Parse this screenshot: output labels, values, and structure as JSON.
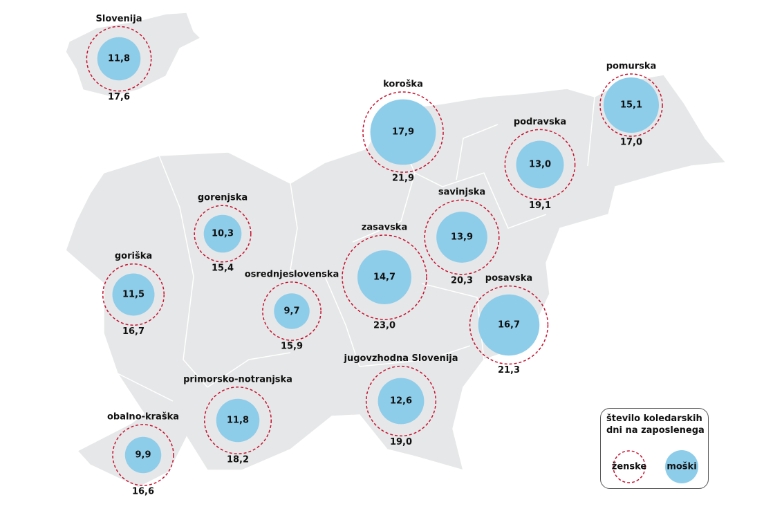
{
  "chart_data": {
    "type": "bubble_map",
    "categories": [
      "Slovenija",
      "koroška",
      "pomurska",
      "podravska",
      "gorenjska",
      "savinjska",
      "zasavska",
      "goriška",
      "osrednjeslovenska",
      "posavska",
      "jugovzhodna Slovenija",
      "primorsko-notranjska",
      "obalno-kraška"
    ],
    "legend_title": "število koledarskih dni na zaposlenega",
    "series": [
      {
        "name": "moški",
        "color": "#8dcdea",
        "style": "filled",
        "values": [
          11.8,
          17.9,
          15.1,
          13.0,
          10.3,
          13.9,
          14.7,
          11.5,
          9.7,
          16.7,
          12.6,
          11.8,
          9.9
        ],
        "value_labels": [
          "11,8",
          "17,9",
          "15,1",
          "13,0",
          "10,3",
          "13,9",
          "14,7",
          "11,5",
          "9,7",
          "16,7",
          "12,6",
          "11,8",
          "9,9"
        ]
      },
      {
        "name": "ženske",
        "color": "#c8102e",
        "style": "dashed",
        "values": [
          17.6,
          21.9,
          17.0,
          19.1,
          15.4,
          20.3,
          23.0,
          16.7,
          15.9,
          21.3,
          19.0,
          18.2,
          16.6
        ],
        "value_labels": [
          "17,6",
          "21,9",
          "17,0",
          "19,1",
          "15,4",
          "20,3",
          "23,0",
          "16,7",
          "15,9",
          "21,3",
          "19,0",
          "18,2",
          "16,6"
        ]
      }
    ]
  }
}
